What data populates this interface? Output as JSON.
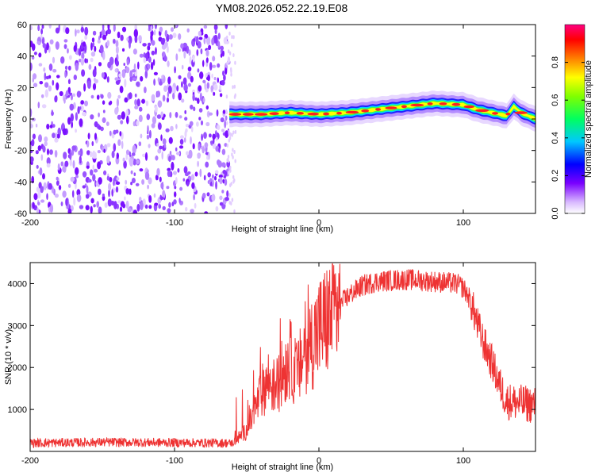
{
  "figure_title": "YM08.2026.052.22.19.E08",
  "chart_data": [
    {
      "type": "heatmap",
      "name": "spectrogram",
      "xlabel": "Height of straight line (km)",
      "ylabel": "Frequency (Hz)",
      "xlim": [
        -200,
        150
      ],
      "ylim": [
        -60,
        60
      ],
      "xticks": [
        -200,
        -100,
        0,
        100
      ],
      "yticks": [
        -60,
        -40,
        -20,
        0,
        20,
        40,
        60
      ],
      "noise_region_x": [
        -200,
        -62
      ],
      "ridge": {
        "x": [
          -62,
          -40,
          -20,
          0,
          20,
          40,
          60,
          80,
          100,
          110,
          120,
          130,
          135,
          140,
          150
        ],
        "freq": [
          3,
          3,
          4,
          3,
          4,
          6,
          8,
          10,
          9,
          6,
          4,
          2,
          8,
          4,
          0
        ]
      },
      "colorbar": {
        "label": "Normalized spectral amplitude",
        "range": [
          0,
          1
        ],
        "ticks": [
          0.0,
          0.2,
          0.4,
          0.6,
          0.8
        ]
      }
    },
    {
      "type": "line",
      "name": "snr",
      "xlabel": "Height of straight line (km)",
      "ylabel": "SNR (10 * v/v)",
      "xlim": [
        -200,
        150
      ],
      "ylim": [
        0,
        4500
      ],
      "xticks": [
        -200,
        -100,
        0,
        100
      ],
      "yticks": [
        1000,
        2000,
        3000,
        4000
      ],
      "color": "#ee3333",
      "series": [
        {
          "name": "SNR",
          "x": [
            -200,
            -150,
            -100,
            -70,
            -60,
            -50,
            -45,
            -40,
            -35,
            -30,
            -25,
            -20,
            -15,
            -10,
            -5,
            0,
            5,
            10,
            20,
            30,
            40,
            60,
            80,
            95,
            100,
            105,
            110,
            115,
            120,
            125,
            130,
            140,
            150
          ],
          "y": [
            200,
            220,
            210,
            200,
            200,
            500,
            900,
            1400,
            1700,
            1500,
            1900,
            2200,
            1800,
            2400,
            2600,
            2900,
            3100,
            3300,
            3700,
            3950,
            4050,
            4100,
            4050,
            4000,
            3900,
            3600,
            3000,
            2500,
            2100,
            1600,
            1200,
            1150,
            1100
          ]
        }
      ]
    }
  ]
}
